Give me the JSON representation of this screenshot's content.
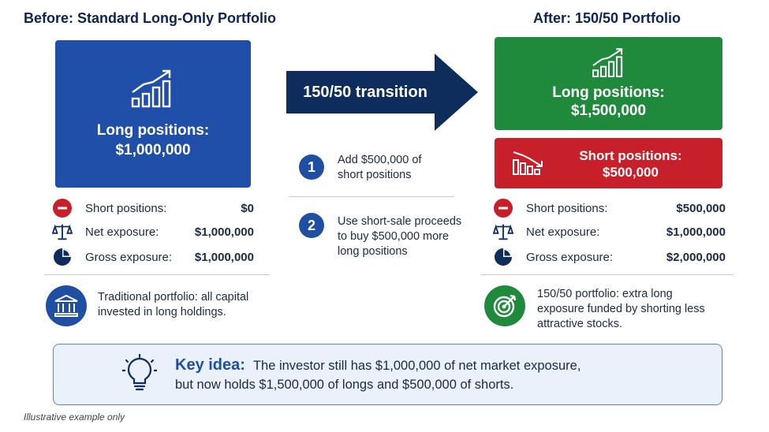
{
  "before": {
    "title": "Before: Standard Long-Only Portfolio",
    "box_label": "Long positions:",
    "box_value": "$1,000,000",
    "rows": [
      {
        "label": "Short positions:",
        "value": "$0"
      },
      {
        "label": "Net exposure:",
        "value": "$1,000,000"
      },
      {
        "label": "Gross exposure:",
        "value": "$1,000,000"
      }
    ],
    "note": [
      "Traditional portfolio: all capital",
      "invested in long holdings."
    ]
  },
  "middle": {
    "arrow_label": "150/50 transition",
    "steps": [
      {
        "number": "1",
        "lines": [
          "Add $500,000 of",
          "short positions"
        ]
      },
      {
        "number": "2",
        "lines": [
          "Use short-sale proceeds",
          "to buy $500,000 more",
          "long positions"
        ]
      }
    ]
  },
  "after": {
    "title": "After: 150/50 Portfolio",
    "long_label": "Long positions:",
    "long_value": "$1,500,000",
    "short_label": "Short positions:",
    "short_value": "$500,000",
    "rows": [
      {
        "label": "Short positions:",
        "value": "$500,000"
      },
      {
        "label": "Net exposure:",
        "value": "$1,000,000"
      },
      {
        "label": "Gross exposure:",
        "value": "$2,000,000"
      }
    ],
    "note": [
      "150/50 portfolio: extra long",
      "exposure funded by shorting less",
      "attractive stocks."
    ]
  },
  "key_idea": {
    "heading": "Key idea:",
    "line1": "The investor still has $1,000,000 of net market exposure,",
    "line2": "but now holds $1,500,000 of longs and $500,000 of shorts."
  },
  "footer": "Illustrative example only",
  "colors": {
    "blue": "#1f4fa8",
    "green": "#1f8a3c",
    "red": "#c8202a",
    "navy": "#0f2d5c",
    "icon_blue": "#1e4fa3"
  }
}
